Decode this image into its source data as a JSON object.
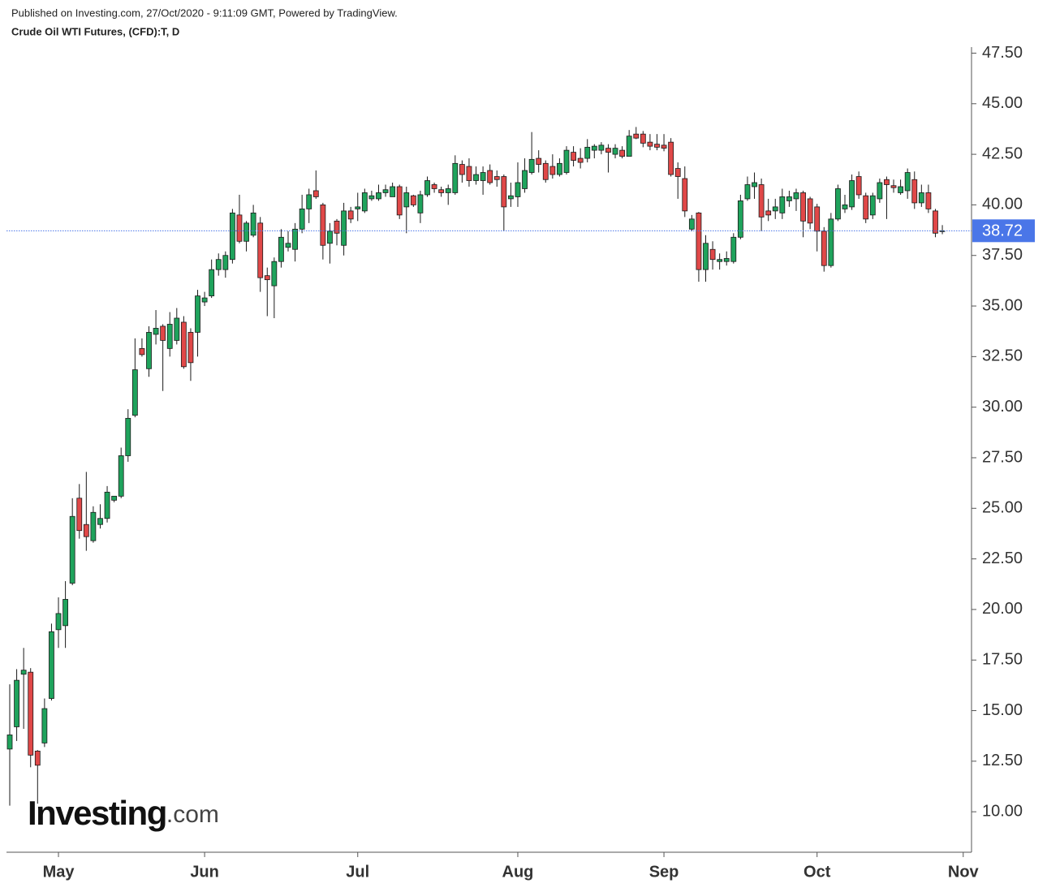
{
  "header": {
    "published": "Published on Investing.com, 27/Oct/2020 - 9:11:09 GMT, Powered by TradingView.",
    "symbol": "Crude Oil WTI Futures, (CFD):T, D"
  },
  "watermark": {
    "main": "Investing",
    "suffix": ".com"
  },
  "chart_data": {
    "type": "candlestick",
    "up_color": "#1fa35c",
    "down_color": "#e04848",
    "edge_color": "#1a1a1a",
    "ylim": [
      8.0,
      47.8
    ],
    "yticks": [
      {
        "value": 10,
        "label": "10.00"
      },
      {
        "value": 12.5,
        "label": "12.50"
      },
      {
        "value": 15,
        "label": "15.00"
      },
      {
        "value": 17.5,
        "label": "17.50"
      },
      {
        "value": 20,
        "label": "20.00"
      },
      {
        "value": 22.5,
        "label": "22.50"
      },
      {
        "value": 25,
        "label": "25.00"
      },
      {
        "value": 27.5,
        "label": "27.50"
      },
      {
        "value": 30,
        "label": "30.00"
      },
      {
        "value": 32.5,
        "label": "32.50"
      },
      {
        "value": 35,
        "label": "35.00"
      },
      {
        "value": 37.5,
        "label": "37.50"
      },
      {
        "value": 40,
        "label": "40.00"
      },
      {
        "value": 42.5,
        "label": "42.50"
      },
      {
        "value": 45,
        "label": "45.00"
      },
      {
        "value": 47.5,
        "label": "47.50"
      }
    ],
    "xticks": [
      {
        "value": 7,
        "label": "May"
      },
      {
        "value": 28,
        "label": "Jun"
      },
      {
        "value": 50,
        "label": "Jul"
      },
      {
        "value": 73,
        "label": "Aug"
      },
      {
        "value": 94,
        "label": "Sep"
      },
      {
        "value": 116,
        "label": "Oct"
      },
      {
        "value": 137,
        "label": "Nov"
      }
    ],
    "last_price": {
      "value": 38.72,
      "label": "38.72",
      "color": "#4a76e8"
    },
    "open": [
      13.1,
      14.2,
      16.8,
      16.9,
      13.0,
      13.4,
      15.6,
      19.0,
      19.2,
      21.3,
      25.5,
      24.2,
      23.4,
      24.2,
      24.5,
      25.4,
      25.6,
      27.6,
      29.6,
      32.9,
      31.9,
      33.6,
      34.0,
      32.9,
      33.3,
      34.2,
      33.7,
      33.7,
      35.2,
      35.5,
      36.8,
      36.8,
      37.3,
      39.5,
      38.2,
      38.5,
      39.1,
      36.5,
      36.0,
      37.2,
      37.9,
      37.8,
      38.8,
      39.8,
      40.7,
      40.0,
      38.1,
      39.2,
      38.0,
      39.7,
      39.8,
      39.7,
      40.3,
      40.3,
      40.6,
      40.4,
      40.9,
      39.9,
      40.45,
      39.6,
      40.5,
      41.0,
      40.75,
      40.6,
      40.6,
      42.0,
      41.9,
      41.2,
      41.2,
      41.7,
      41.4,
      41.4,
      40.3,
      40.4,
      40.8,
      41.6,
      42.3,
      42.05,
      41.9,
      41.5,
      41.6,
      42.6,
      42.3,
      42.3,
      42.7,
      42.7,
      42.8,
      42.5,
      42.7,
      42.4,
      43.5,
      43.5,
      43.1,
      43.0,
      42.95,
      43.1,
      41.8,
      41.3,
      38.8,
      39.6,
      36.8,
      37.8,
      37.2,
      37.2,
      37.2,
      38.4,
      40.3,
      40.9,
      41.0,
      39.7,
      39.7,
      39.6,
      40.2,
      40.3,
      40.6,
      40.3,
      39.9,
      38.7,
      37.0,
      39.3,
      39.8,
      39.9,
      41.4,
      40.45,
      39.5,
      40.3,
      41.25,
      40.95,
      40.6,
      40.7,
      41.25,
      40.1,
      40.6,
      39.7,
      38.68
    ],
    "high": [
      16.3,
      17.05,
      18.1,
      17.1,
      13.05,
      15.6,
      19.3,
      20.6,
      21.4,
      25.5,
      26.2,
      26.8,
      25.1,
      25.2,
      26.1,
      25.6,
      28.0,
      29.9,
      33.4,
      33.4,
      34.0,
      34.8,
      34.1,
      34.7,
      34.9,
      34.5,
      33.9,
      35.8,
      35.7,
      37.3,
      37.6,
      37.7,
      39.8,
      40.5,
      39.2,
      40.0,
      39.4,
      36.9,
      37.4,
      38.8,
      38.7,
      39.1,
      40.5,
      40.8,
      41.7,
      40.1,
      39.1,
      39.3,
      40.1,
      39.9,
      40.6,
      40.8,
      40.7,
      41.0,
      41.0,
      41.1,
      41.0,
      40.9,
      40.5,
      40.7,
      41.4,
      41.1,
      40.9,
      41.0,
      42.45,
      42.2,
      42.3,
      41.9,
      41.9,
      42.0,
      41.7,
      41.5,
      41.1,
      42.1,
      42.3,
      43.6,
      42.7,
      42.2,
      42.5,
      42.3,
      42.9,
      42.9,
      42.8,
      43.25,
      43.0,
      43.1,
      43.0,
      43.0,
      42.9,
      43.7,
      43.85,
      43.65,
      43.5,
      43.5,
      43.5,
      43.3,
      42.1,
      41.9,
      39.5,
      39.65,
      38.5,
      38.2,
      37.6,
      37.7,
      38.6,
      40.5,
      41.4,
      41.6,
      41.3,
      40.3,
      40.3,
      40.8,
      40.7,
      40.8,
      40.7,
      40.4,
      40.05,
      38.9,
      39.6,
      41.0,
      40.5,
      41.5,
      41.65,
      40.6,
      40.6,
      41.3,
      41.4,
      41.25,
      41.25,
      41.8,
      41.65,
      41.0,
      41.0,
      39.8,
      39.0
    ],
    "low": [
      10.3,
      13.5,
      14.1,
      12.2,
      10.4,
      13.2,
      15.5,
      18.1,
      18.1,
      21.2,
      23.5,
      22.9,
      23.3,
      24.0,
      24.3,
      25.3,
      25.5,
      27.3,
      29.5,
      32.5,
      31.5,
      33.1,
      30.8,
      32.5,
      33.1,
      31.9,
      31.3,
      32.5,
      35.0,
      35.4,
      36.5,
      36.4,
      37.1,
      38.1,
      37.7,
      38.4,
      35.7,
      34.5,
      34.4,
      36.9,
      37.7,
      37.2,
      38.6,
      39.1,
      40.3,
      37.3,
      37.1,
      38.0,
      37.5,
      39.1,
      39.2,
      39.6,
      40.2,
      40.2,
      40.4,
      40.4,
      39.3,
      38.6,
      39.9,
      39.1,
      40.4,
      40.6,
      40.4,
      40.0,
      40.5,
      41.1,
      40.9,
      41.0,
      40.5,
      41.0,
      40.9,
      38.7,
      39.9,
      39.9,
      40.6,
      41.5,
      41.6,
      41.1,
      41.3,
      41.4,
      41.5,
      41.9,
      41.8,
      42.1,
      42.3,
      42.5,
      41.6,
      42.3,
      42.3,
      42.4,
      43.25,
      42.85,
      42.7,
      42.7,
      42.65,
      41.4,
      40.3,
      39.4,
      38.7,
      36.2,
      36.2,
      36.8,
      36.8,
      37.0,
      37.1,
      38.3,
      40.2,
      40.3,
      38.7,
      39.2,
      39.3,
      39.3,
      39.9,
      39.7,
      38.4,
      38.8,
      37.7,
      36.7,
      36.9,
      39.2,
      39.6,
      39.75,
      40.3,
      39.1,
      39.3,
      40.1,
      39.3,
      40.6,
      40.5,
      40.3,
      39.8,
      39.9,
      39.6,
      38.4,
      38.55
    ],
    "close": [
      13.8,
      16.5,
      17.0,
      12.8,
      12.3,
      15.1,
      18.9,
      19.8,
      20.5,
      24.6,
      23.9,
      23.6,
      24.8,
      24.5,
      25.8,
      25.6,
      27.6,
      29.45,
      31.85,
      32.6,
      33.7,
      33.9,
      33.3,
      34.1,
      34.4,
      32.0,
      32.2,
      35.5,
      35.4,
      36.8,
      37.3,
      37.5,
      39.6,
      38.2,
      39.1,
      39.6,
      36.4,
      36.3,
      37.2,
      38.4,
      38.1,
      38.8,
      39.8,
      40.5,
      40.4,
      38.0,
      38.7,
      38.6,
      39.7,
      39.3,
      39.9,
      40.6,
      40.45,
      40.6,
      40.75,
      40.9,
      39.5,
      40.6,
      40.0,
      40.5,
      41.2,
      40.8,
      40.6,
      40.8,
      42.05,
      41.5,
      41.2,
      41.5,
      41.6,
      41.1,
      41.25,
      39.9,
      40.45,
      41.1,
      41.7,
      42.25,
      42.0,
      41.25,
      41.5,
      42.05,
      42.7,
      42.2,
      42.1,
      42.85,
      42.9,
      42.95,
      42.6,
      42.8,
      42.4,
      43.4,
      43.3,
      43.05,
      42.9,
      42.85,
      42.8,
      41.5,
      41.4,
      39.7,
      39.3,
      36.8,
      38.1,
      37.3,
      37.3,
      37.35,
      38.4,
      40.2,
      41.0,
      41.1,
      39.4,
      39.5,
      39.9,
      40.4,
      40.4,
      40.6,
      39.2,
      39.1,
      38.7,
      37.0,
      39.3,
      40.8,
      40.0,
      41.2,
      40.5,
      39.3,
      40.45,
      41.1,
      41.0,
      40.85,
      40.9,
      41.6,
      40.1,
      40.6,
      39.8,
      38.6,
      38.72
    ]
  }
}
